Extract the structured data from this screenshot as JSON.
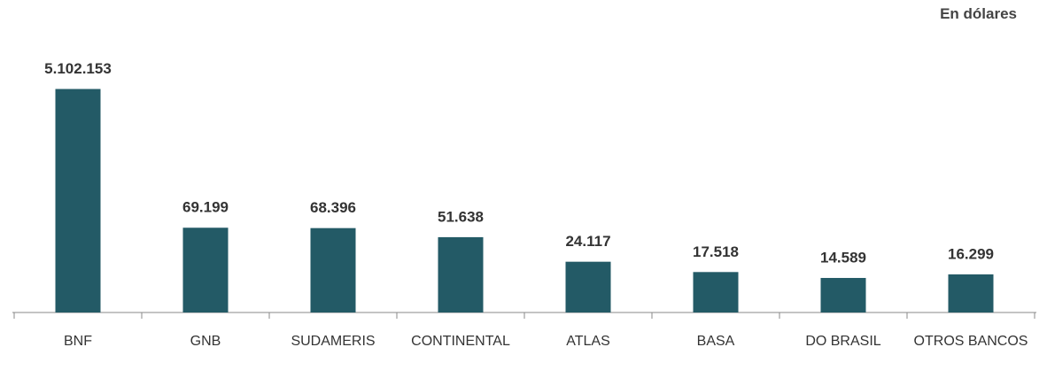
{
  "chart_data": {
    "type": "bar",
    "subtitle": "En dólares",
    "categories": [
      "BNF",
      "GNB",
      "SUDAMERIS",
      "CONTINENTAL",
      "ATLAS",
      "BASA",
      "DO BRASIL",
      "OTROS BANCOS"
    ],
    "values": [
      5102153,
      69199,
      68396,
      51638,
      24117,
      17518,
      14589,
      16299
    ],
    "value_labels": [
      "5.102.153",
      "69.199",
      "68.396",
      "51.638",
      "24.117",
      "17.518",
      "14.589",
      "16.299"
    ],
    "color": "#235a66",
    "log_scale": true,
    "ylim": [
      5000,
      10000000
    ]
  }
}
